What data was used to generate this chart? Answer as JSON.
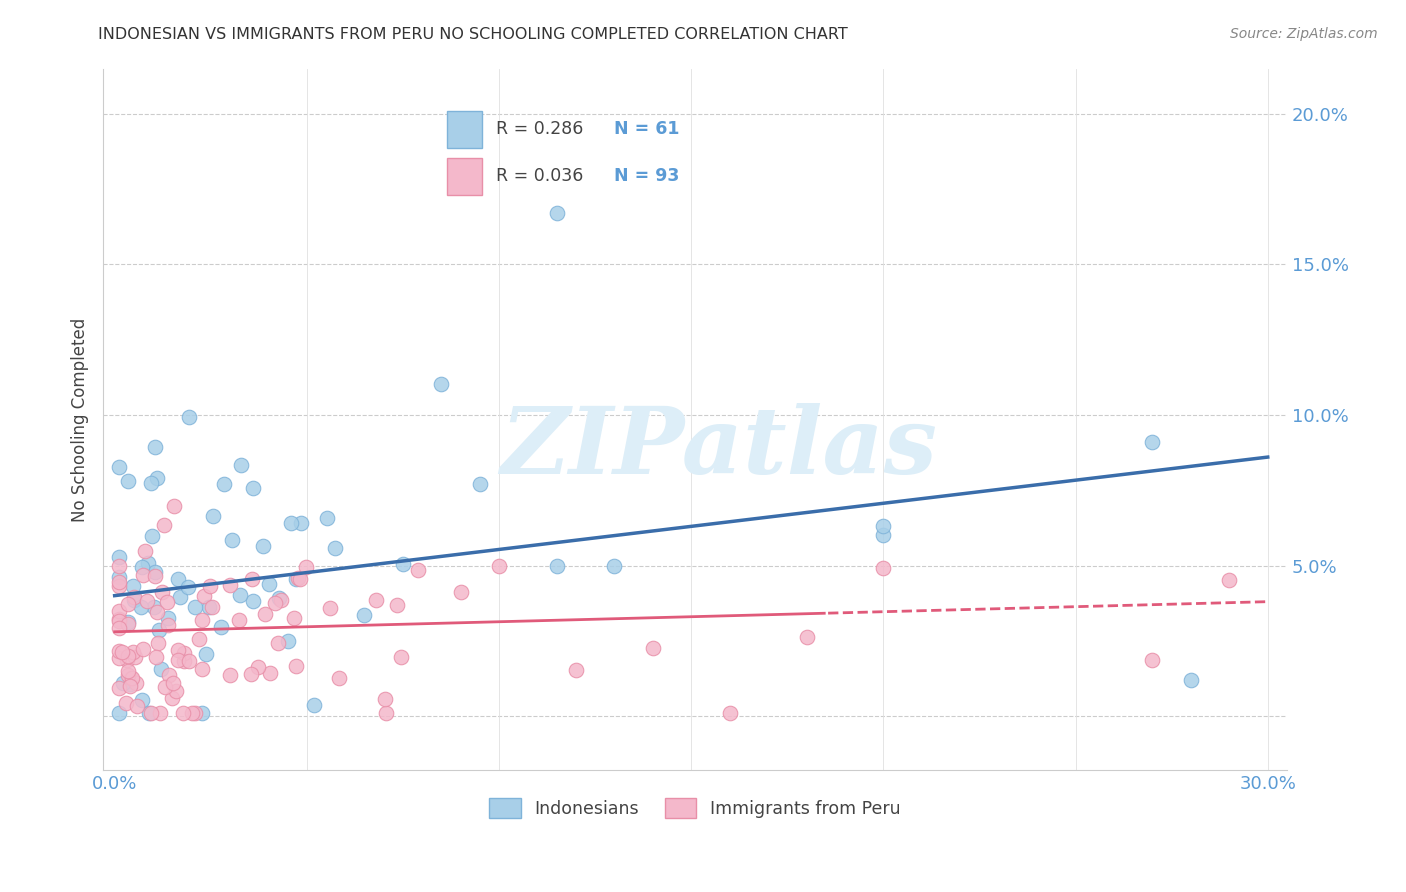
{
  "title": "INDONESIAN VS IMMIGRANTS FROM PERU NO SCHOOLING COMPLETED CORRELATION CHART",
  "source": "Source: ZipAtlas.com",
  "ylabel": "No Schooling Completed",
  "xlim": [
    -0.003,
    0.305
  ],
  "ylim": [
    -0.018,
    0.215
  ],
  "yticks": [
    0.0,
    0.05,
    0.1,
    0.15,
    0.2
  ],
  "ytick_labels": [
    "",
    "5.0%",
    "10.0%",
    "15.0%",
    "20.0%"
  ],
  "xticks": [
    0.0,
    0.05,
    0.1,
    0.15,
    0.2,
    0.25,
    0.3
  ],
  "xtick_labels": [
    "0.0%",
    "",
    "",
    "",
    "",
    "",
    "30.0%"
  ],
  "legend_label1": "Indonesians",
  "legend_label2": "Immigrants from Peru",
  "blue_scatter_color": "#a8cfe8",
  "blue_scatter_edge": "#7fb3d9",
  "pink_scatter_color": "#f4b8cb",
  "pink_scatter_edge": "#e88fa8",
  "blue_line_color": "#3a6daa",
  "pink_line_color": "#e05a7a",
  "axis_tick_color": "#5b9bd5",
  "watermark_text": "ZIPatlas",
  "watermark_color": "#ddeef8",
  "indo_trend_start_y": 0.04,
  "indo_trend_end_y": 0.086,
  "peru_trend_start_y": 0.028,
  "peru_trend_end_y": 0.038
}
